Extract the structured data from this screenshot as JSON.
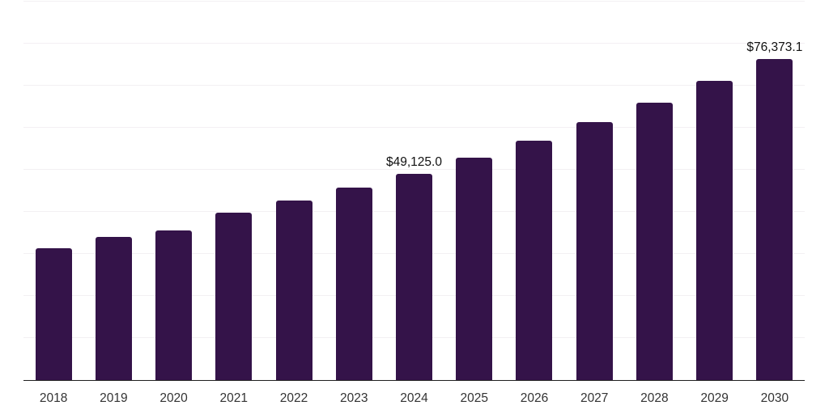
{
  "chart_data": {
    "type": "bar",
    "title": "",
    "xlabel": "",
    "ylabel": "",
    "categories": [
      "2018",
      "2019",
      "2020",
      "2021",
      "2022",
      "2023",
      "2024",
      "2025",
      "2026",
      "2027",
      "2028",
      "2029",
      "2030"
    ],
    "values": [
      31400,
      34000,
      35600,
      39800,
      42700,
      45700,
      49125.0,
      52900,
      56900,
      61300,
      65900,
      71100,
      76373.1
    ],
    "data_labels": [
      "",
      "",
      "",
      "",
      "",
      "",
      "$49,125.0",
      "",
      "",
      "",
      "",
      "",
      "$76,373.1"
    ],
    "ylim": [
      0,
      90000
    ],
    "gridline_interval": 10000,
    "grid": "horizontal",
    "legend": "none",
    "y_tick_labels_visible": false,
    "bar_color": "#341349",
    "gridline_color": "#f3f0f3",
    "axis_line_color": "#1f1f1f",
    "tick_label_color": "#333333",
    "data_label_color": "#111111",
    "background_color": "#ffffff"
  }
}
